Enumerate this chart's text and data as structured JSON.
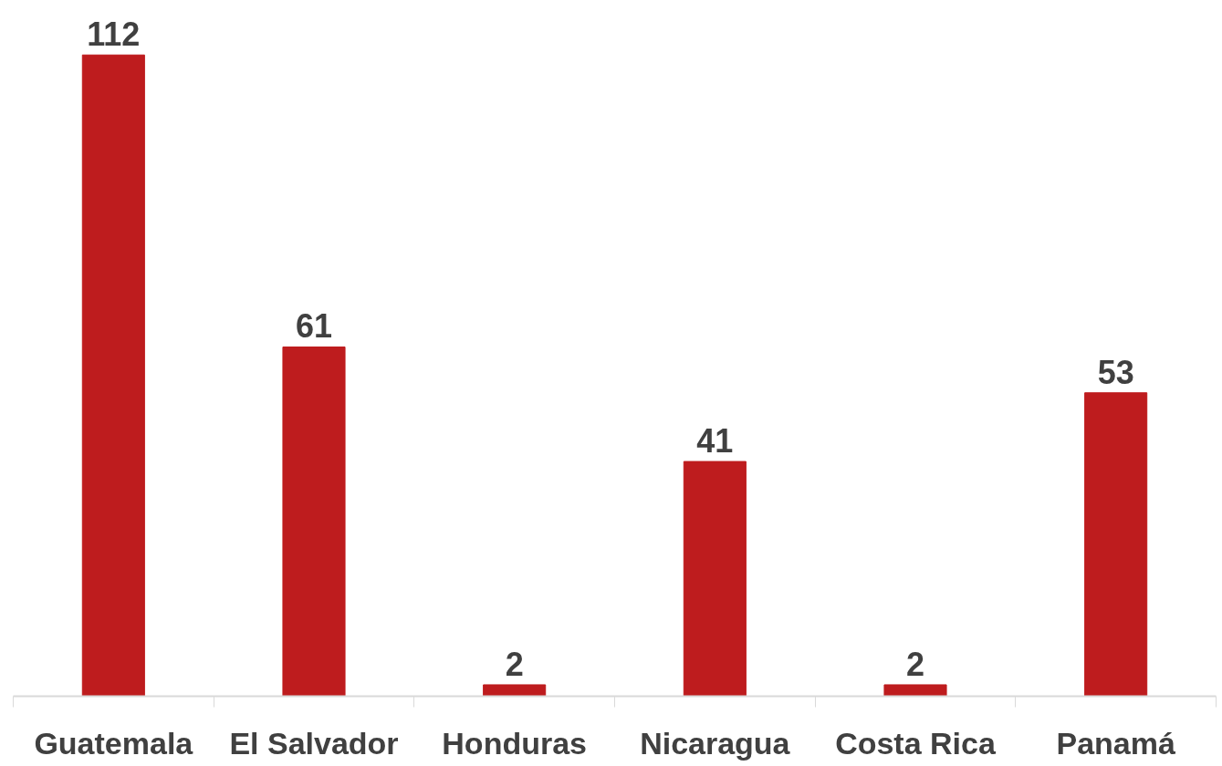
{
  "chart_data": {
    "type": "bar",
    "categories": [
      "Guatemala",
      "El Salvador",
      "Honduras",
      "Nicaragua",
      "Costa Rica",
      "Panamá"
    ],
    "values": [
      112,
      61,
      2,
      41,
      2,
      53
    ],
    "color": "#be1c1e",
    "data_labels": true,
    "grid": false
  }
}
